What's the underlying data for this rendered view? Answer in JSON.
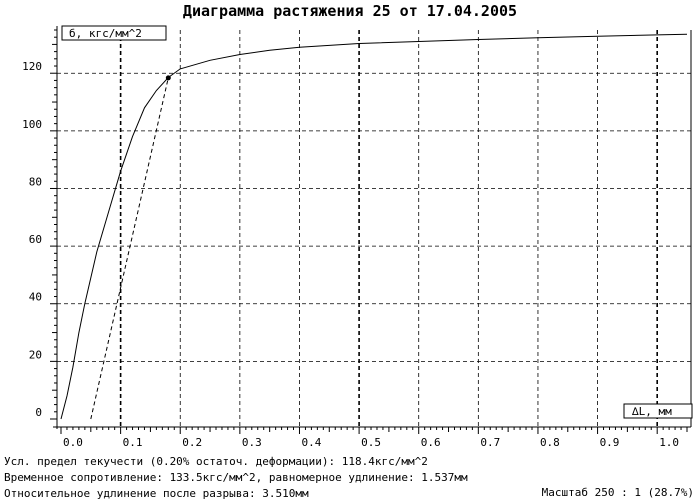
{
  "chart_data": {
    "type": "line",
    "title": "Диаграмма растяжения 25 от 17.04.2005",
    "ylabel": "б, кгс/мм^2",
    "xlabel": "∆L, мм",
    "xlim": [
      0.0,
      1.05
    ],
    "ylim": [
      0,
      135
    ],
    "x_ticks": [
      0.0,
      0.1,
      0.2,
      0.3,
      0.4,
      0.5,
      0.6,
      0.7,
      0.8,
      0.9,
      1.0
    ],
    "x_tick_labels": [
      "0.0",
      "0.1",
      "0.2",
      "0.3",
      "0.4",
      "0.5",
      "0.6",
      "0.7",
      "0.8",
      "0.9",
      "1.0"
    ],
    "y_ticks": [
      0,
      20,
      40,
      60,
      80,
      100,
      120
    ],
    "y_tick_labels": [
      "0",
      "20",
      "40",
      "60",
      "80",
      "100",
      "120"
    ],
    "grid": true,
    "series": [
      {
        "x": [
          0.0,
          0.01,
          0.02,
          0.03,
          0.04,
          0.06,
          0.08,
          0.1,
          0.12,
          0.14,
          0.16,
          0.18,
          0.2,
          0.25,
          0.3,
          0.35,
          0.4,
          0.5,
          0.6,
          0.7,
          0.8,
          0.9,
          1.0,
          1.05
        ],
        "y": [
          0,
          8,
          18,
          30,
          40,
          58,
          72,
          86,
          98,
          108,
          114,
          118.5,
          121.5,
          124.5,
          126.5,
          128,
          129,
          130.3,
          131,
          131.7,
          132.3,
          132.8,
          133.3,
          133.5
        ]
      },
      {
        "x": [
          0.05,
          0.18
        ],
        "y": [
          0,
          118.4
        ]
      }
    ],
    "markers": [
      {
        "x": 0.18,
        "y": 118.4
      }
    ]
  },
  "footer": {
    "line1": "Усл. предел текучести (0.20% остаточ. деформации): 118.4кгс/мм^2",
    "line2": "Временное сопротивление: 133.5кгс/мм^2, равномерное удлинение: 1.537мм",
    "line3": "Относительное удлинение после разрыва: 3.510мм",
    "scale": "Масштаб 250 : 1 (28.7%)"
  }
}
